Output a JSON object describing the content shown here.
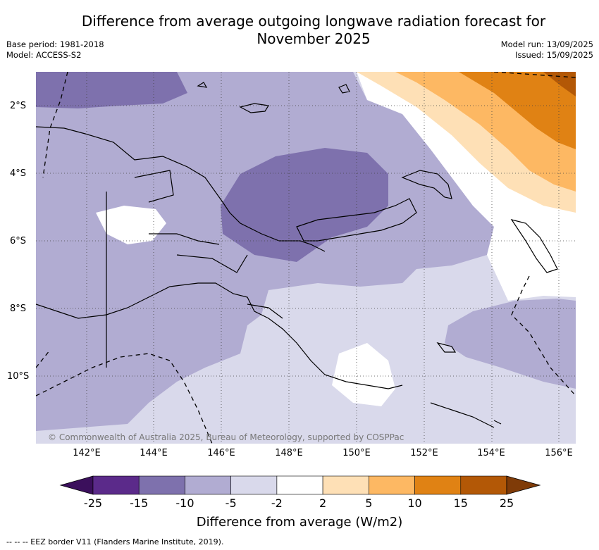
{
  "title_line1": "Difference from average outgoing longwave radiation forecast for",
  "title_line2": "November 2025",
  "meta_left": {
    "base_period": "Base period: 1981-2018",
    "model": "Model: ACCESS-S2"
  },
  "meta_right": {
    "model_run": "Model run: 13/09/2025",
    "issued": "Issued: 15/09/2025"
  },
  "lat_labels": [
    "2°S",
    "4°S",
    "6°S",
    "8°S",
    "10°S"
  ],
  "lon_labels": [
    "142°E",
    "144°E",
    "146°E",
    "148°E",
    "150°E",
    "152°E",
    "154°E",
    "156°E"
  ],
  "copyright": "© Commonwealth of Australia 2025, Bureau of Meteorology, supported by COSPPac",
  "colorbar": {
    "title": "Difference from average (W/m2)",
    "ticks": [
      "-25",
      "-15",
      "-10",
      "-5",
      "-2",
      "2",
      "5",
      "10",
      "15",
      "25"
    ],
    "colors": [
      "#3b0f5c",
      "#5b2a8a",
      "#7e71ad",
      "#b1acd2",
      "#d9d9eb",
      "#ffffff",
      "#fee0b6",
      "#fdb863",
      "#e08214",
      "#b35806",
      "#7f3b08"
    ]
  },
  "footnote": "--  --  -- EEZ border V11 (Flanders Marine Institute, 2019)."
}
